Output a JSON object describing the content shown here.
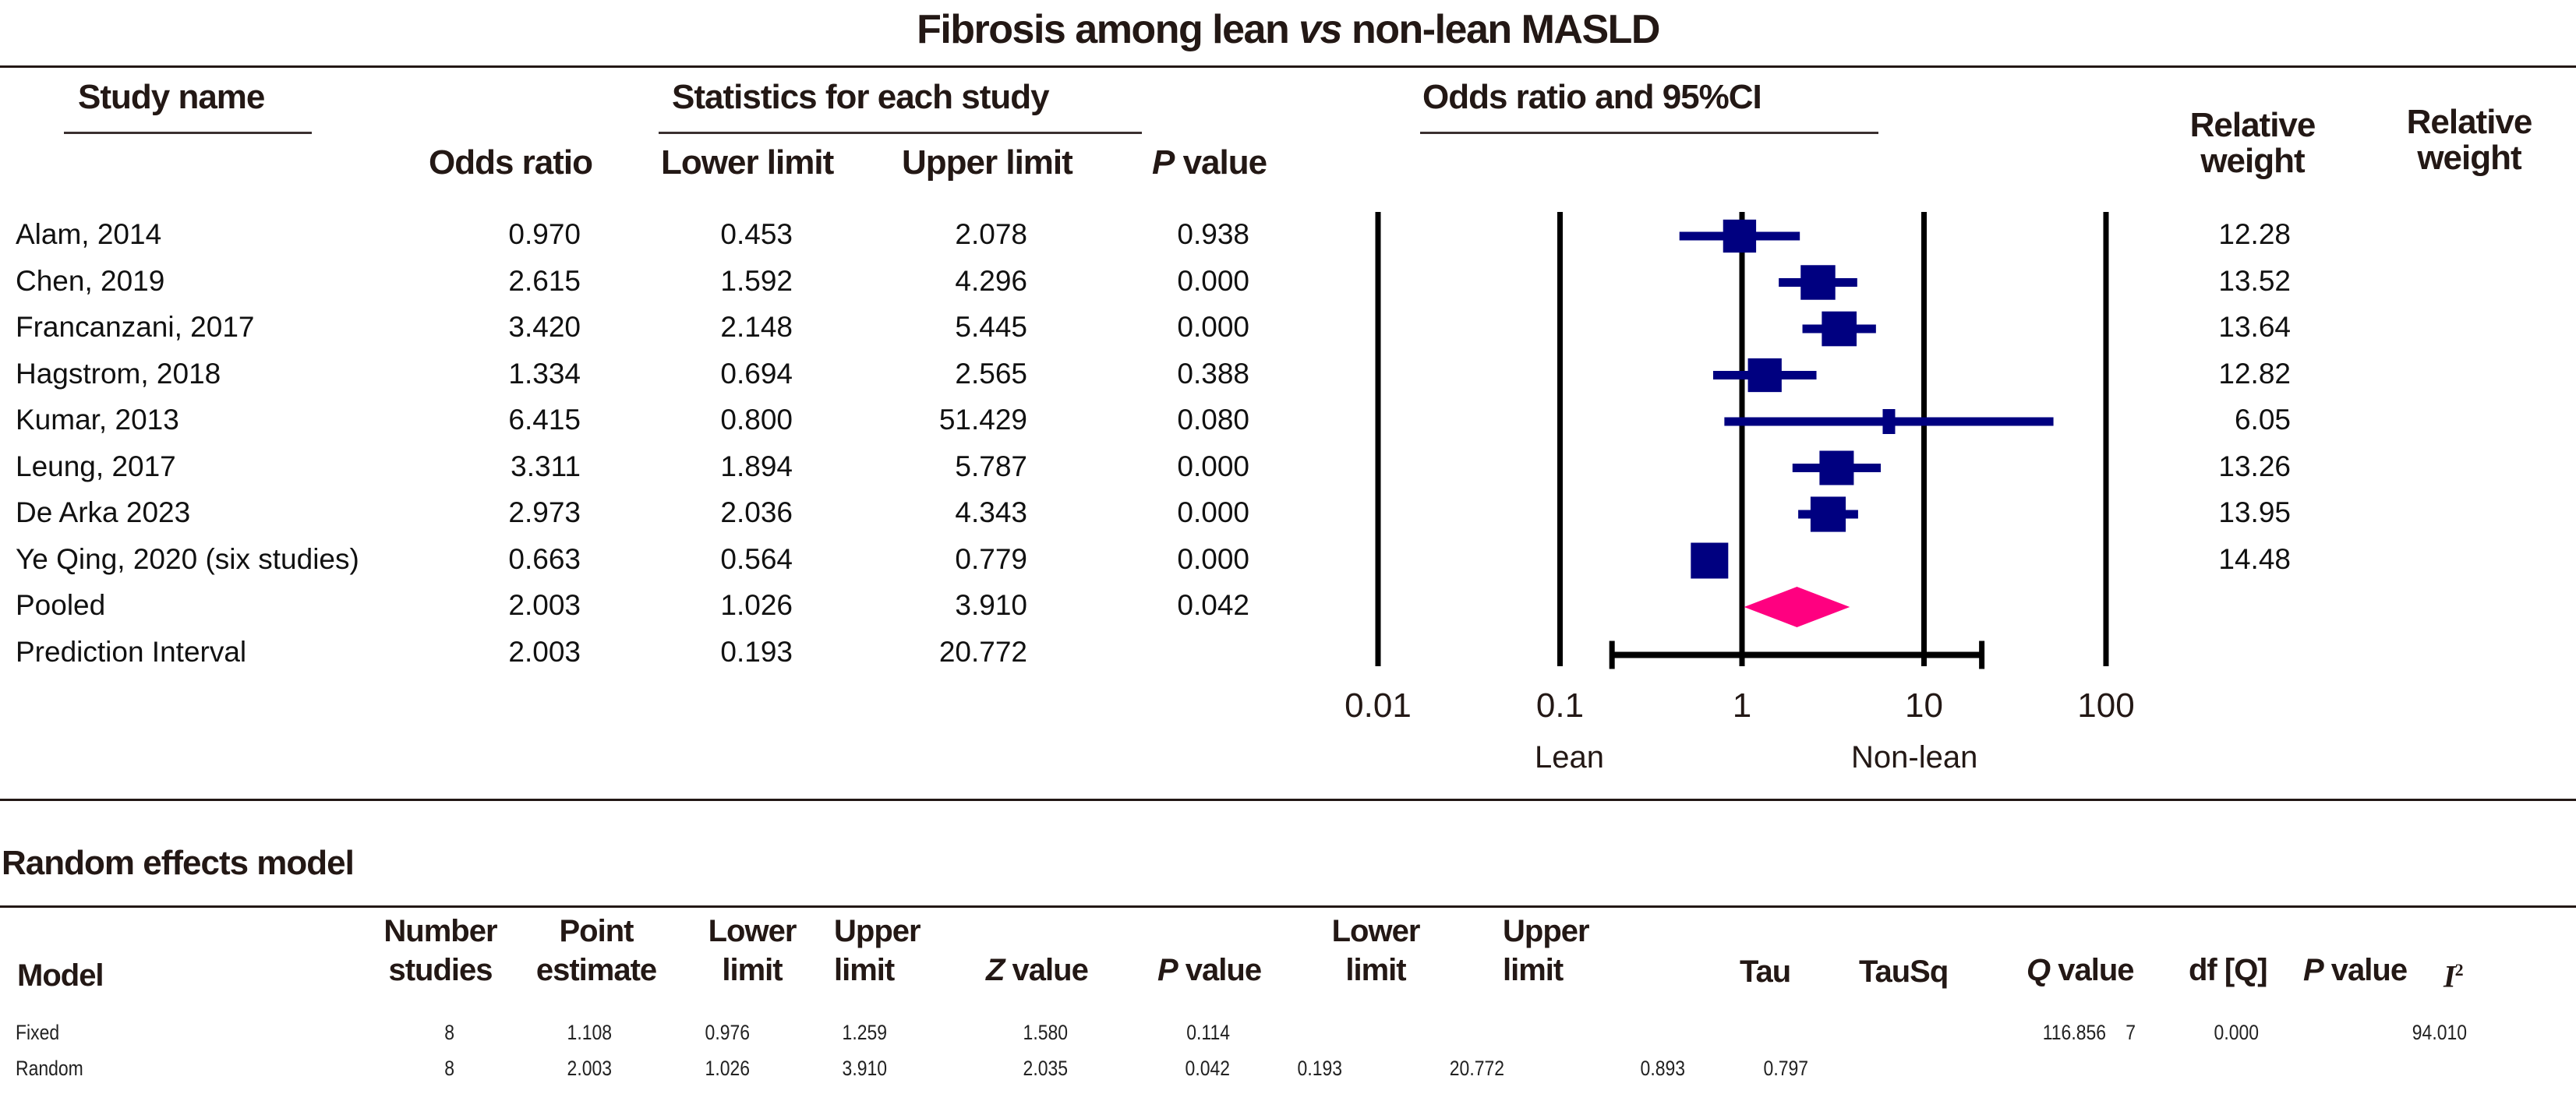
{
  "chart_data": {
    "type": "forest",
    "title_parts": [
      "Fibrosis among lean ",
      "vs",
      " non-lean MASLD"
    ],
    "column_headers": {
      "study_name": "Study name",
      "statistics_group": "Statistics for each study",
      "odds_ratio": "Odds ratio",
      "lower_limit": "Lower limit",
      "upper_limit": "Upper limit",
      "p_value_italic": "P",
      "p_value_rest": " value",
      "plot_group": "Odds ratio and 95%CI",
      "relative_weight_1": [
        "Relative",
        "weight"
      ],
      "relative_weight_2": [
        "Relative",
        "weight"
      ]
    },
    "studies": [
      {
        "name": "Alam, 2014",
        "or": "0.970",
        "lower": "0.453",
        "upper": "2.078",
        "p": "0.938",
        "weight": "12.28"
      },
      {
        "name": "Chen, 2019",
        "or": "2.615",
        "lower": "1.592",
        "upper": "4.296",
        "p": "0.000",
        "weight": "13.52"
      },
      {
        "name": "Francanzani, 2017",
        "or": "3.420",
        "lower": "2.148",
        "upper": "5.445",
        "p": "0.000",
        "weight": "13.64"
      },
      {
        "name": "Hagstrom, 2018",
        "or": "1.334",
        "lower": "0.694",
        "upper": "2.565",
        "p": "0.388",
        "weight": "12.82"
      },
      {
        "name": "Kumar, 2013",
        "or": "6.415",
        "lower": "0.800",
        "upper": "51.429",
        "p": "0.080",
        "weight": "6.05"
      },
      {
        "name": "Leung, 2017",
        "or": "3.311",
        "lower": "1.894",
        "upper": "5.787",
        "p": "0.000",
        "weight": "13.26"
      },
      {
        "name": "De Arka 2023",
        "or": "2.973",
        "lower": "2.036",
        "upper": "4.343",
        "p": "0.000",
        "weight": "13.95"
      },
      {
        "name": "Ye Qing, 2020 (six studies)",
        "or": "0.663",
        "lower": "0.564",
        "upper": "0.779",
        "p": "0.000",
        "weight": "14.48"
      }
    ],
    "pooled": {
      "name": "Pooled",
      "or": "2.003",
      "lower": "1.026",
      "upper": "3.910",
      "p": "0.042"
    },
    "prediction_interval": {
      "name": "Prediction Interval",
      "or": "2.003",
      "lower": "0.193",
      "upper": "20.772"
    },
    "x_axis": {
      "scale": "log",
      "range": [
        0.01,
        100
      ],
      "ticks": [
        0.01,
        0.1,
        1,
        10,
        100
      ],
      "tick_labels": [
        "0.01",
        "0.1",
        "1",
        "10",
        "100"
      ],
      "left_label": "Lean",
      "right_label": "Non-lean",
      "gridlines": true
    },
    "colors": {
      "study_marker": "#000080",
      "pooled_diamond": "#ff0080",
      "prediction_bar": "#000000"
    }
  },
  "random_effects": {
    "section_title": "Random effects model",
    "headers": {
      "model": "Model",
      "number_studies": [
        "Number",
        "studies"
      ],
      "point_estimate": [
        "Point",
        "estimate"
      ],
      "lower_limit": [
        "Lower",
        "limit"
      ],
      "upper_limit": [
        "Upper",
        "limit"
      ],
      "z_value_italic": "Z",
      "z_value_rest": " value",
      "p_value_italic": "P",
      "p_value_rest": " value",
      "pi_lower_limit": [
        "Lower",
        "limit"
      ],
      "pi_upper_limit": [
        "Upper",
        "limit"
      ],
      "tau": "Tau",
      "tausq": "TauSq",
      "q_value_italic": "Q",
      "q_value_rest": " value",
      "df_q": "df [Q]",
      "p_value2_italic": "P",
      "p_value2_rest": " value",
      "i2_letter": "I",
      "i2_sup": "2"
    },
    "rows": [
      {
        "model": "Fixed",
        "n": "8",
        "point": "1.108",
        "lower": "0.976",
        "upper": "1.259",
        "z": "1.580",
        "p": "0.114",
        "pi_lower": "",
        "pi_upper": "",
        "tau": "",
        "tausq": "",
        "q": "116.856",
        "df": "7",
        "p2": "0.000",
        "i2": "94.010"
      },
      {
        "model": "Random",
        "n": "8",
        "point": "2.003",
        "lower": "1.026",
        "upper": "3.910",
        "z": "2.035",
        "p": "0.042",
        "pi_lower": "0.193",
        "pi_upper": "20.772",
        "tau": "0.893",
        "tausq": "0.797",
        "q": "",
        "df": "",
        "p2": "",
        "i2": ""
      }
    ]
  }
}
